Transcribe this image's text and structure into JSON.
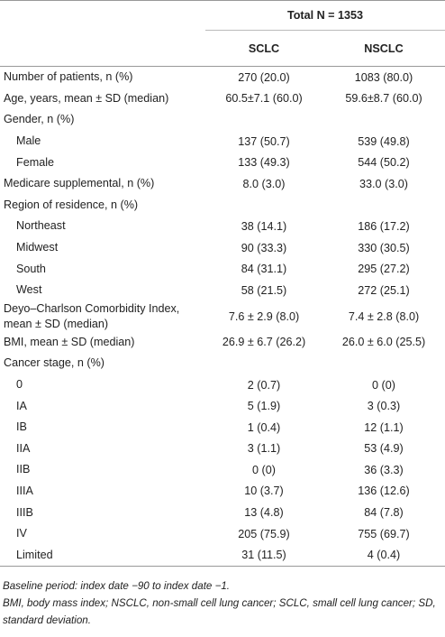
{
  "table": {
    "group_header": "Total N = 1353",
    "columns": [
      "SCLC",
      "NSCLC"
    ],
    "sections": [
      {
        "label": "Number of patients, n (%)",
        "values": [
          "270 (20.0)",
          "1083 (80.0)"
        ]
      },
      {
        "label": "Age, years, mean ± SD (median)",
        "values": [
          "60.5±7.1 (60.0)",
          "59.6±8.7 (60.0)"
        ]
      },
      {
        "label": "Gender, n (%)",
        "rows": [
          {
            "label": "Male",
            "values": [
              "137 (50.7)",
              "539 (49.8)"
            ]
          },
          {
            "label": "Female",
            "values": [
              "133 (49.3)",
              "544 (50.2)"
            ]
          }
        ]
      },
      {
        "label": "Medicare supplemental, n (%)",
        "values": [
          "8.0 (3.0)",
          "33.0 (3.0)"
        ]
      },
      {
        "label": "Region of residence, n (%)",
        "rows": [
          {
            "label": "Northeast",
            "values": [
              "38 (14.1)",
              "186 (17.2)"
            ]
          },
          {
            "label": "Midwest",
            "values": [
              "90 (33.3)",
              "330 (30.5)"
            ]
          },
          {
            "label": "South",
            "values": [
              "84 (31.1)",
              "295 (27.2)"
            ]
          },
          {
            "label": "West",
            "values": [
              "58 (21.5)",
              "272 (25.1)"
            ]
          }
        ]
      },
      {
        "label": "Deyo–Charlson Comorbidity Index, mean ± SD (median)",
        "values": [
          "7.6 ± 2.9 (8.0)",
          "7.4 ± 2.8 (8.0)"
        ]
      },
      {
        "label": "BMI, mean ± SD (median)",
        "values": [
          "26.9 ± 6.7 (26.2)",
          "26.0 ± 6.0 (25.5)"
        ]
      },
      {
        "label": "Cancer stage, n (%)",
        "rows": [
          {
            "label": "0",
            "values": [
              "2 (0.7)",
              "0 (0)"
            ]
          },
          {
            "label": "IA",
            "values": [
              "5 (1.9)",
              "3 (0.3)"
            ]
          },
          {
            "label": "IB",
            "values": [
              "1 (0.4)",
              "12 (1.1)"
            ]
          },
          {
            "label": "IIA",
            "values": [
              "3 (1.1)",
              "53 (4.9)"
            ]
          },
          {
            "label": "IIB",
            "values": [
              "0 (0)",
              "36 (3.3)"
            ]
          },
          {
            "label": "IIIA",
            "values": [
              "10 (3.7)",
              "136 (12.6)"
            ]
          },
          {
            "label": "IIIB",
            "values": [
              "13 (4.8)",
              "84 (7.8)"
            ]
          },
          {
            "label": "IV",
            "values": [
              "205 (75.9)",
              "755 (69.7)"
            ]
          },
          {
            "label": "Limited",
            "values": [
              "31 (11.5)",
              "4 (0.4)"
            ]
          }
        ]
      }
    ],
    "footnotes": [
      "Baseline period: index date −90 to index date −1.",
      "BMI, body mass index; NSCLC, non-small cell lung cancer; SCLC, small cell lung cancer; SD, standard deviation."
    ]
  }
}
